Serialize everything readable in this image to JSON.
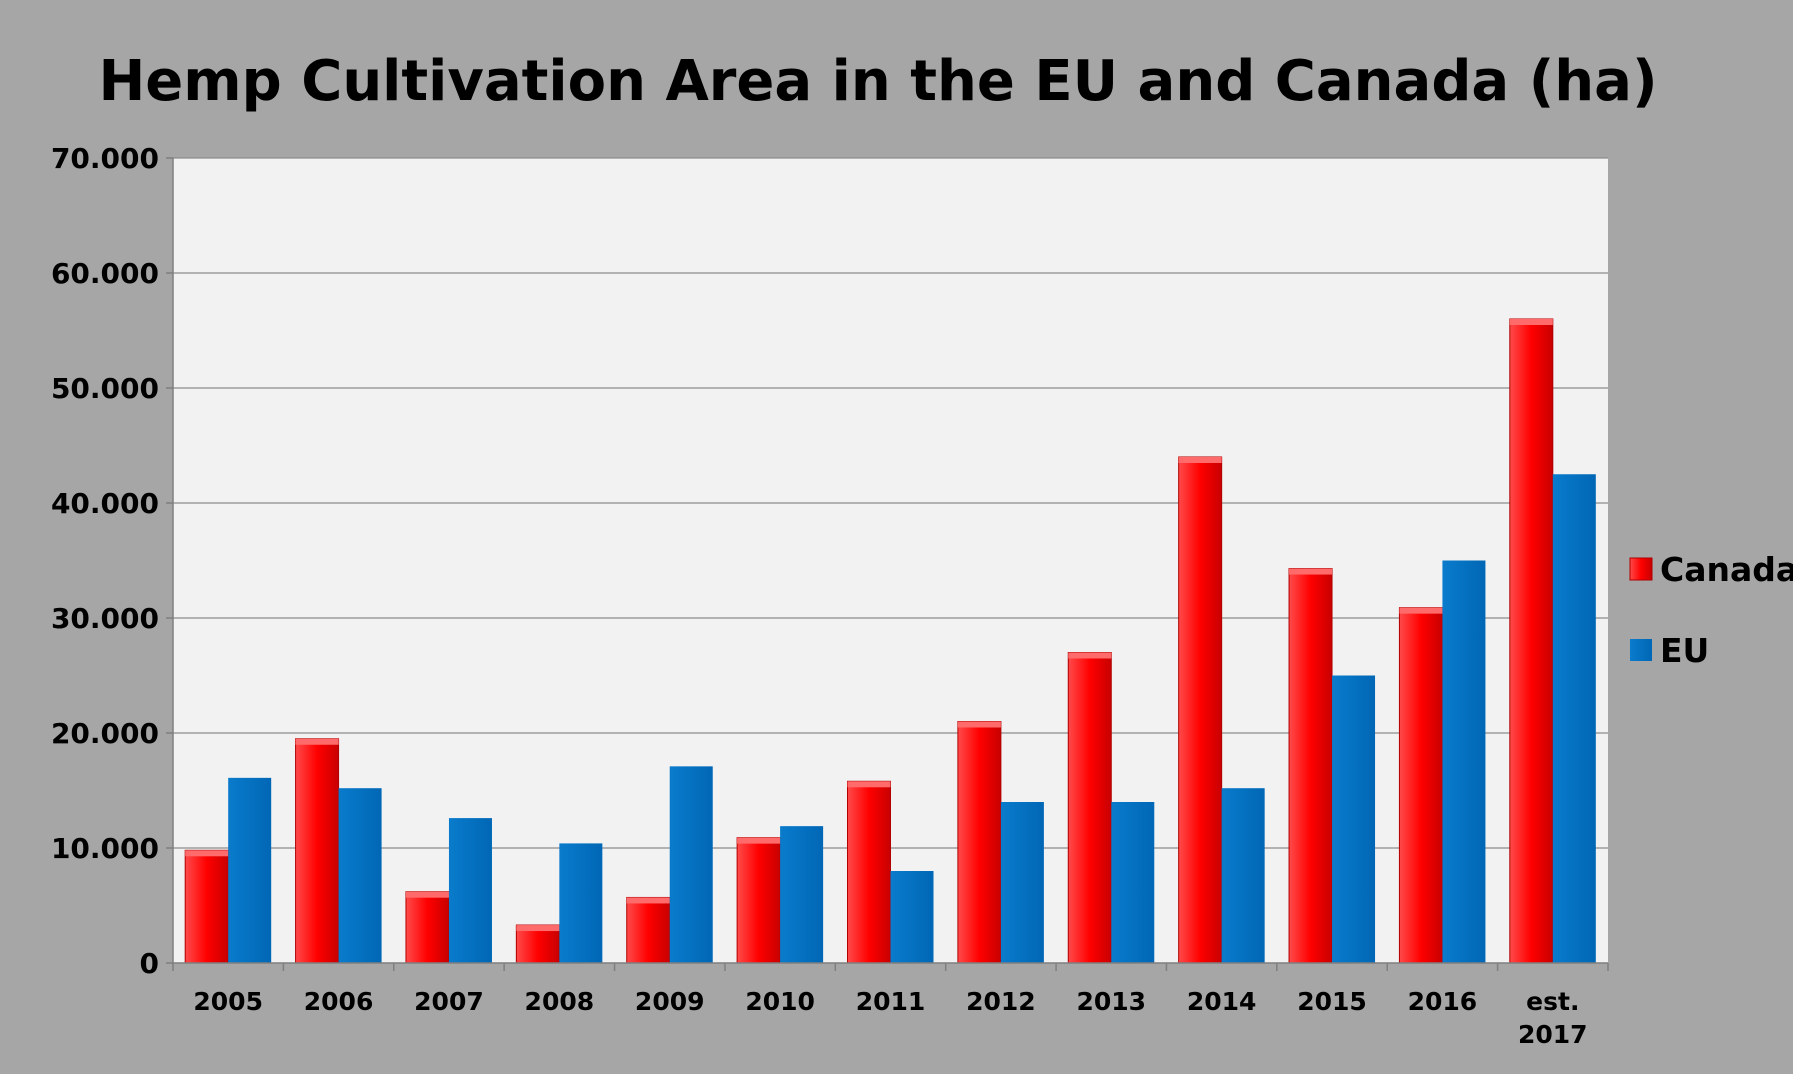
{
  "chart_data": {
    "type": "bar",
    "title": "Hemp Cultivation Area in the EU and Canada (ha)",
    "xlabel": "",
    "ylabel": "",
    "categories": [
      "2005",
      "2006",
      "2007",
      "2008",
      "2009",
      "2010",
      "2011",
      "2012",
      "2013",
      "2014",
      "2015",
      "2016",
      "est. 2017"
    ],
    "series": [
      {
        "name": "Canada",
        "color": "#ff0000",
        "values": [
          9800,
          19500,
          6200,
          3300,
          5700,
          10900,
          15800,
          21000,
          27000,
          44000,
          34300,
          30900,
          56000
        ]
      },
      {
        "name": "EU",
        "color": "#0070c0",
        "values": [
          16100,
          15200,
          12600,
          10400,
          17100,
          11900,
          8000,
          14000,
          14000,
          15200,
          25000,
          35000,
          42500
        ]
      }
    ],
    "ylim": [
      0,
      70000
    ],
    "yticks": [
      0,
      10000,
      20000,
      30000,
      40000,
      50000,
      60000,
      70000
    ],
    "ytick_labels": [
      "0",
      "10.000",
      "20.000",
      "30.000",
      "40.000",
      "50.000",
      "60.000",
      "70.000"
    ],
    "grid": true,
    "legend_position": "right"
  }
}
